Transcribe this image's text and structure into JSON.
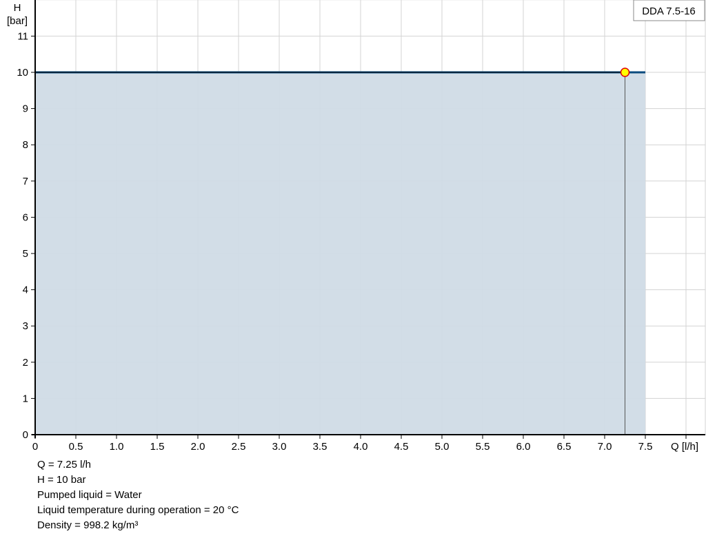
{
  "chart_data": {
    "type": "area",
    "title": "DDA 7.5-16",
    "xlabel": "Q [l/h]",
    "ylabel_line1": "H",
    "ylabel_line2": "[bar]",
    "xlim": [
      0,
      8.25
    ],
    "ylim": [
      0,
      12
    ],
    "x_ticks": [
      "0",
      "0.5",
      "1.0",
      "1.5",
      "2.0",
      "2.5",
      "3.0",
      "3.5",
      "4.0",
      "4.5",
      "5.0",
      "5.5",
      "6.0",
      "6.5",
      "7.0",
      "7.5"
    ],
    "y_ticks": [
      "0",
      "1",
      "2",
      "3",
      "4",
      "5",
      "6",
      "7",
      "8",
      "9",
      "10",
      "11"
    ],
    "grid": true,
    "series": [
      {
        "x": [
          0,
          7.5
        ],
        "y": [
          10,
          10
        ]
      }
    ],
    "operating_point": {
      "x": 7.25,
      "y": 10
    },
    "colors": {
      "curve": "#0a4a7e",
      "fill": "#d0dbe6",
      "point_fill": "#ffff00",
      "point_stroke": "#e00000",
      "grid": "#d3d3d3"
    }
  },
  "info": [
    "Q = 7.25 l/h",
    "H = 10 bar",
    "Pumped liquid = Water",
    "Liquid temperature during operation = 20 °C",
    "Density = 998.2 kg/m³"
  ]
}
